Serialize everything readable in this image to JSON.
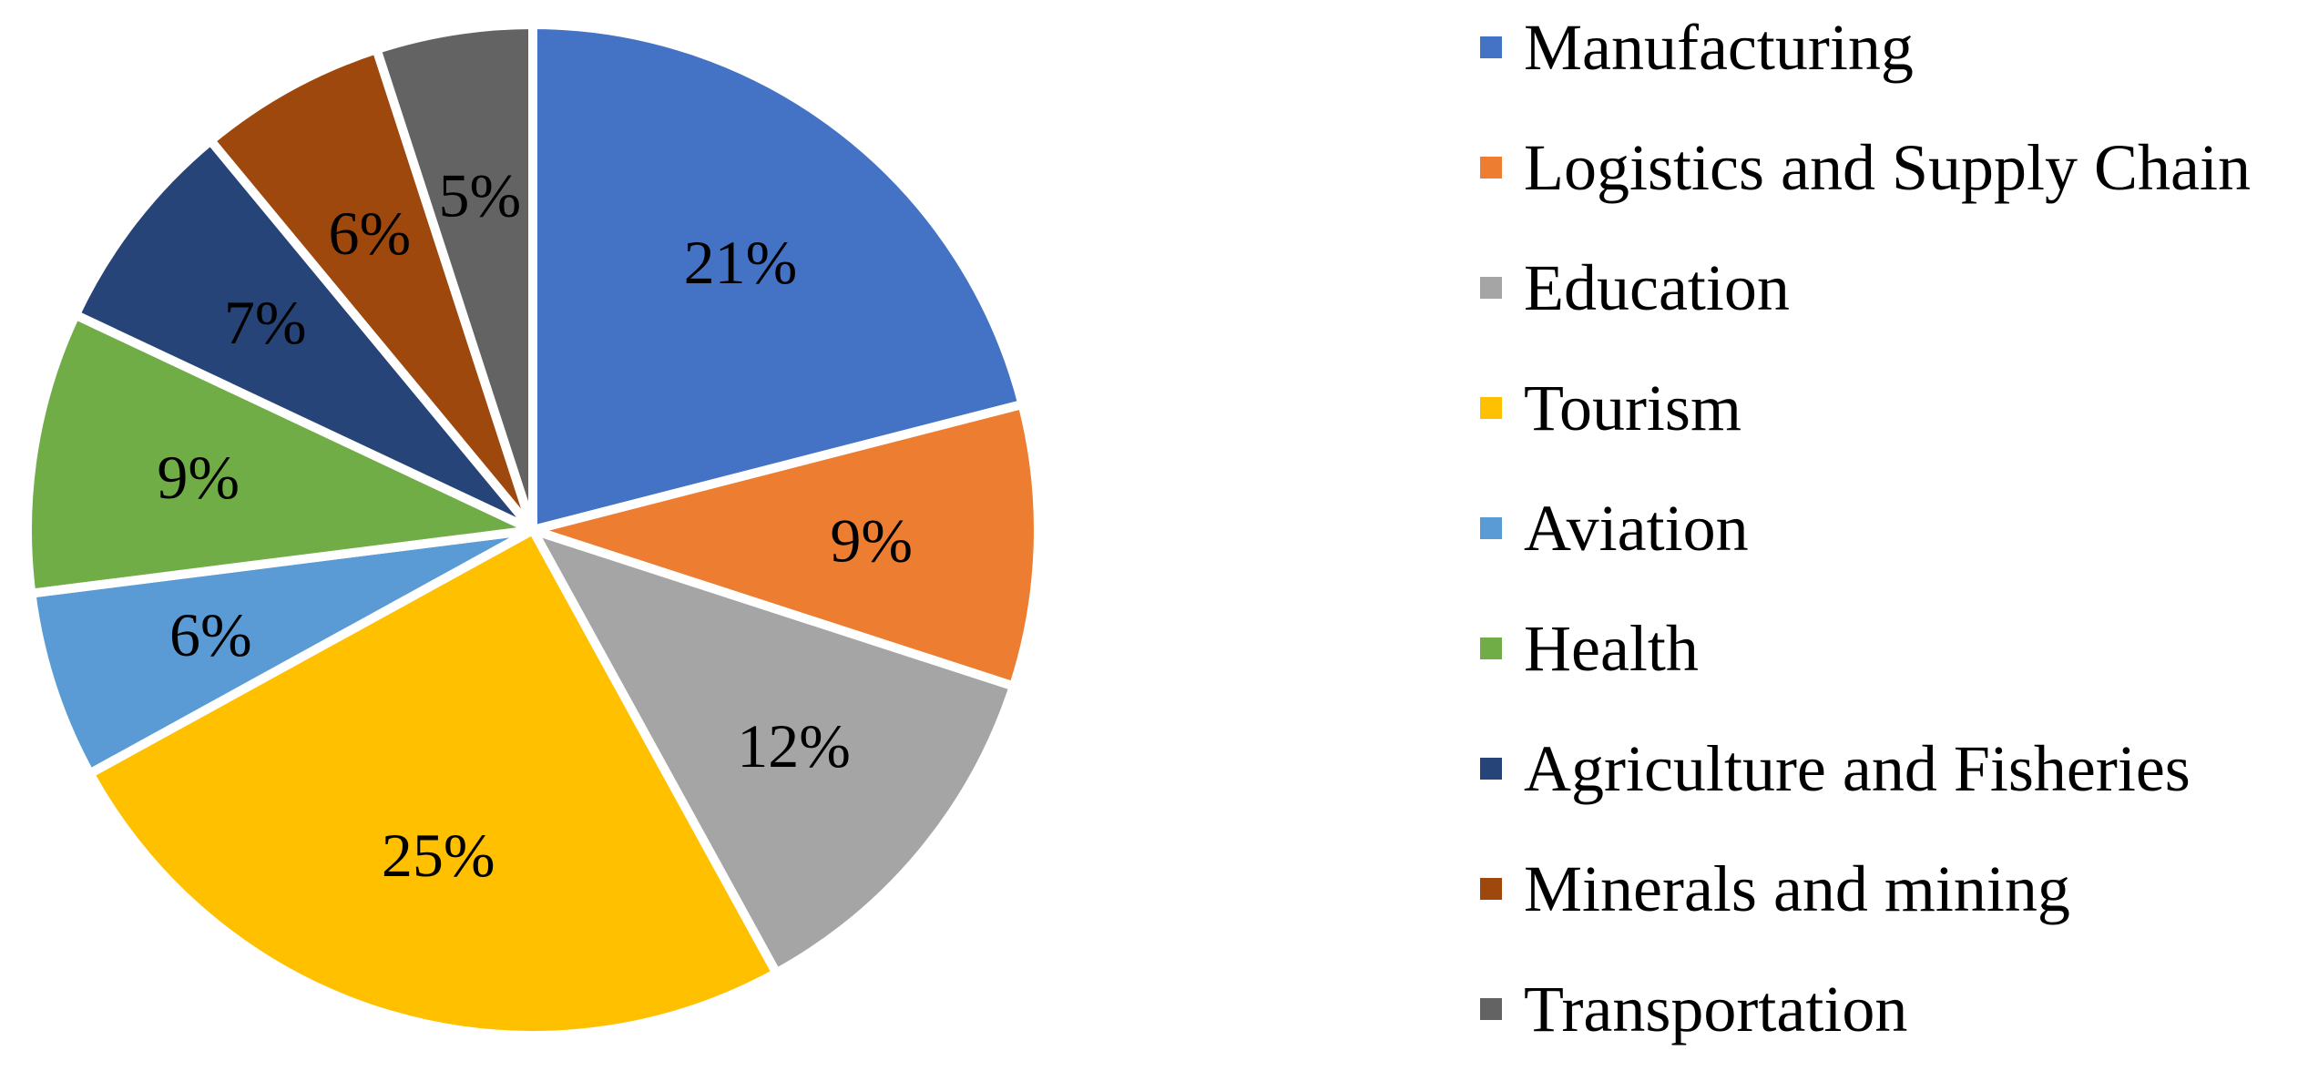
{
  "chart_data": {
    "type": "pie",
    "title": "",
    "legend_position": "right",
    "start_angle_deg": 0,
    "direction": "clockwise",
    "slices": [
      {
        "label": "Manufacturing",
        "value": 21,
        "display": "21%",
        "color": "#4472C4"
      },
      {
        "label": "Logistics and Supply Chain",
        "value": 9,
        "display": "9%",
        "color": "#ED7D31"
      },
      {
        "label": "Education",
        "value": 12,
        "display": "12%",
        "color": "#A5A5A5"
      },
      {
        "label": "Tourism",
        "value": 25,
        "display": "25%",
        "color": "#FFC000"
      },
      {
        "label": "Aviation",
        "value": 6,
        "display": "6%",
        "color": "#5B9BD5"
      },
      {
        "label": "Health",
        "value": 9,
        "display": "9%",
        "color": "#70AD47"
      },
      {
        "label": "Agriculture and Fisheries",
        "value": 7,
        "display": "7%",
        "color": "#264478"
      },
      {
        "label": "Minerals and mining",
        "value": 6,
        "display": "6%",
        "color": "#9E480E"
      },
      {
        "label": "Transportation",
        "value": 5,
        "display": "5%",
        "color": "#636363"
      }
    ]
  }
}
